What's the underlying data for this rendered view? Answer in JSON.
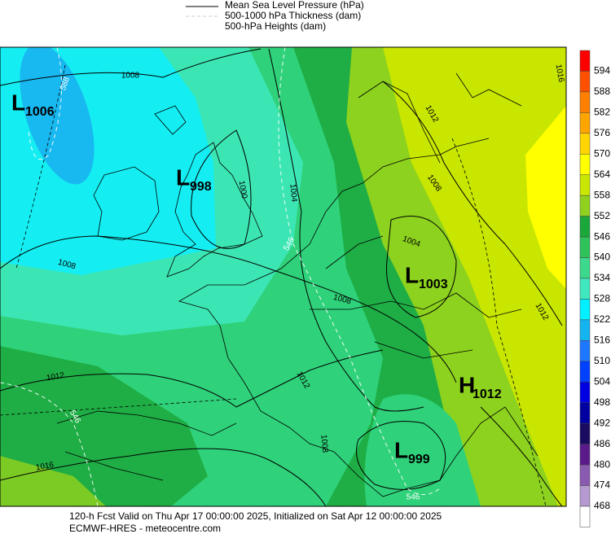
{
  "legend": [
    {
      "label": "Mean Sea Level Pressure (hPa)"
    },
    {
      "label": "500-1000 hPa Thickness (dam)"
    },
    {
      "label": "500-hPa Heights (dam)"
    }
  ],
  "colorbar": {
    "levels": [
      594,
      588,
      582,
      576,
      570,
      564,
      558,
      552,
      546,
      540,
      534,
      528,
      522,
      516,
      510,
      504,
      498,
      492,
      486,
      480,
      474,
      468
    ],
    "colors": [
      "#ff0000",
      "#ff5000",
      "#ff8000",
      "#ffa500",
      "#ffd400",
      "#ffff00",
      "#c8e600",
      "#8fd11e",
      "#1aa83a",
      "#2ec35a",
      "#3cd98c",
      "#40e8c0",
      "#00f0ff",
      "#14b4f0",
      "#1e78ff",
      "#0040ff",
      "#0000e0",
      "#0000a0",
      "#1a0a60",
      "#5a1a8a",
      "#8a5ab0",
      "#b49ad0",
      "#ffffff"
    ]
  },
  "pressure_centers": [
    {
      "letter": "L",
      "value": "1006"
    },
    {
      "letter": "L",
      "value": "998"
    },
    {
      "letter": "L",
      "value": "1003"
    },
    {
      "letter": "H",
      "value": "1012"
    },
    {
      "letter": "L",
      "value": "999"
    }
  ],
  "contour_labels": [
    "588",
    "1008",
    "1000",
    "1004",
    "546",
    "1008",
    "1008",
    "1004",
    "1012",
    "1008",
    "1016",
    "1012",
    "1012",
    "546",
    "1012",
    "1016",
    "1008",
    "546"
  ],
  "footer": [
    "120-h Fcst Valid on Thu Apr 17 00:00:00 2025, Initialized on Sat Apr 12 00:00:00 2025",
    "ECMWF-HRES  - meteocentre.com"
  ]
}
